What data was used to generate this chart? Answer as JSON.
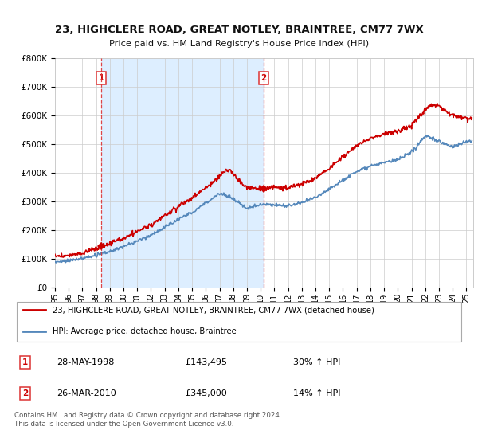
{
  "title": "23, HIGHCLERE ROAD, GREAT NOTLEY, BRAINTREE, CM77 7WX",
  "subtitle": "Price paid vs. HM Land Registry's House Price Index (HPI)",
  "ylim": [
    0,
    800000
  ],
  "yticks": [
    0,
    100000,
    200000,
    300000,
    400000,
    500000,
    600000,
    700000,
    800000
  ],
  "ytick_labels": [
    "£0",
    "£100K",
    "£200K",
    "£300K",
    "£400K",
    "£500K",
    "£600K",
    "£700K",
    "£800K"
  ],
  "xlim_start": 1995,
  "xlim_end": 2025.5,
  "sale1_x": 1998.38,
  "sale1_y": 143495,
  "sale1_label": "1",
  "sale1_date": "28-MAY-1998",
  "sale1_price": "£143,495",
  "sale1_hpi": "30% ↑ HPI",
  "sale2_x": 2010.23,
  "sale2_y": 345000,
  "sale2_label": "2",
  "sale2_date": "26-MAR-2010",
  "sale2_price": "£345,000",
  "sale2_hpi": "14% ↑ HPI",
  "hpi_color": "#5588bb",
  "price_color": "#cc0000",
  "vline_color": "#dd3333",
  "bg_color": "#ffffff",
  "highlight_bg": "#ddeeff",
  "grid_color": "#cccccc",
  "legend_line1": "23, HIGHCLERE ROAD, GREAT NOTLEY, BRAINTREE, CM77 7WX (detached house)",
  "legend_line2": "HPI: Average price, detached house, Braintree",
  "footer": "Contains HM Land Registry data © Crown copyright and database right 2024.\nThis data is licensed under the Open Government Licence v3.0."
}
